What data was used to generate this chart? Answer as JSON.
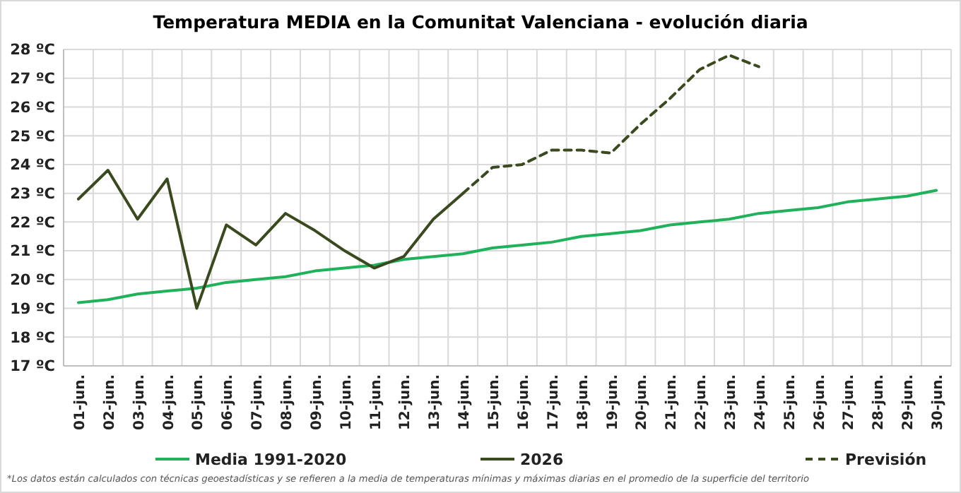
{
  "chart_data": {
    "type": "line",
    "title": "Temperatura MEDIA en la Comunitat Valenciana - evolución diaria",
    "categories": [
      "01-jun.",
      "02-jun.",
      "03-jun.",
      "04-jun.",
      "05-jun.",
      "06-jun.",
      "07-jun.",
      "08-jun.",
      "09-jun.",
      "10-jun.",
      "11-jun.",
      "12-jun.",
      "13-jun.",
      "14-jun.",
      "15-jun.",
      "16-jun.",
      "17-jun.",
      "18-jun.",
      "19-jun.",
      "20-jun.",
      "21-jun.",
      "22-jun.",
      "23-jun.",
      "24-jun.",
      "25-jun.",
      "26-jun.",
      "27-jun.",
      "28-jun.",
      "29-jun.",
      "30-jun."
    ],
    "series": [
      {
        "name": "Media 1991-2020",
        "color": "#1fb25a",
        "line_style": "solid",
        "values": [
          19.2,
          19.3,
          19.5,
          19.6,
          19.7,
          19.9,
          20.0,
          20.1,
          20.3,
          20.4,
          20.5,
          20.7,
          20.8,
          20.9,
          21.1,
          21.2,
          21.3,
          21.5,
          21.6,
          21.7,
          21.9,
          22.0,
          22.1,
          22.3,
          22.4,
          22.5,
          22.7,
          22.8,
          22.9,
          23.1
        ]
      },
      {
        "name": "2026",
        "color": "#3b4a1e",
        "line_style": "solid",
        "values": [
          22.8,
          23.8,
          22.1,
          23.5,
          19.0,
          21.9,
          21.2,
          22.3,
          21.7,
          21.0,
          20.4,
          20.8,
          22.1,
          23.0,
          null,
          null,
          null,
          null,
          null,
          null,
          null,
          null,
          null,
          null,
          null,
          null,
          null,
          null,
          null,
          null
        ]
      },
      {
        "name": "Previsión",
        "color": "#3b4a1e",
        "line_style": "dashed",
        "values": [
          null,
          null,
          null,
          null,
          null,
          null,
          null,
          null,
          null,
          null,
          null,
          null,
          null,
          23.0,
          23.9,
          24.0,
          24.5,
          24.5,
          24.4,
          25.4,
          26.3,
          27.3,
          27.8,
          27.4,
          null,
          null,
          null,
          null,
          null,
          null
        ]
      }
    ],
    "ylim": [
      17,
      28
    ],
    "yticks": [
      {
        "value": 17,
        "label": "17 ºC"
      },
      {
        "value": 18,
        "label": "18 ºC"
      },
      {
        "value": 19,
        "label": "19 ºC"
      },
      {
        "value": 20,
        "label": "20 ºC"
      },
      {
        "value": 21,
        "label": "21 ºC"
      },
      {
        "value": 22,
        "label": "22 ºC"
      },
      {
        "value": 23,
        "label": "23 ºC"
      },
      {
        "value": 24,
        "label": "24 ºC"
      },
      {
        "value": 25,
        "label": "25 ºC"
      },
      {
        "value": 26,
        "label": "26 ºC"
      },
      {
        "value": 27,
        "label": "27 ºC"
      },
      {
        "value": 28,
        "label": "28 ºC"
      }
    ],
    "grid": true,
    "legend": "bottom",
    "annotations": [
      "*Los datos están calculados con técnicas geoestadísticas y se refieren a la media de temperaturas mínimas y máximas diarias en el promedio de la superficie del territorio"
    ]
  }
}
